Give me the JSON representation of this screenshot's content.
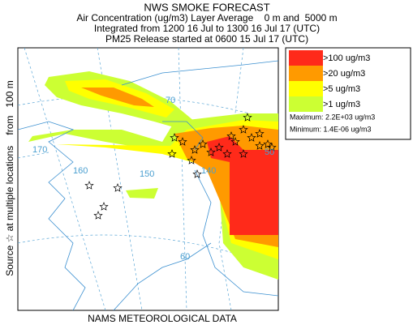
{
  "header": {
    "title": "NWS SMOKE FORECAST",
    "lines": [
      "Air Concentration (ug/m3) Layer Average    0 m and  5000 m",
      "Integrated from 1200 16 Jul to 1300 16 Jul 17 (UTC)",
      "PM25 Release started at 0600 15 Jul 17 (UTC)"
    ]
  },
  "legend": {
    "items": [
      {
        "label": ">100 ug/m3",
        "color": "#ff2a1a"
      },
      {
        "label": ">20 ug/m3",
        "color": "#ff9a00"
      },
      {
        "label": ">5 ug/m3",
        "color": "#ffff00"
      },
      {
        "label": ">1 ug/m3",
        "color": "#ccff33"
      }
    ],
    "maximum": "Maximum: 2.2E+03 ug/m3",
    "minimum": "Minimum: 1.4E-06 ug/m3"
  },
  "side_label": "Source ☆ at multiple locations    from   100 m",
  "footer": "NAMS METEOROLOGICAL DATA",
  "map_labels": [
    "170",
    "160",
    "150",
    "70",
    "140",
    "60",
    "50"
  ]
}
